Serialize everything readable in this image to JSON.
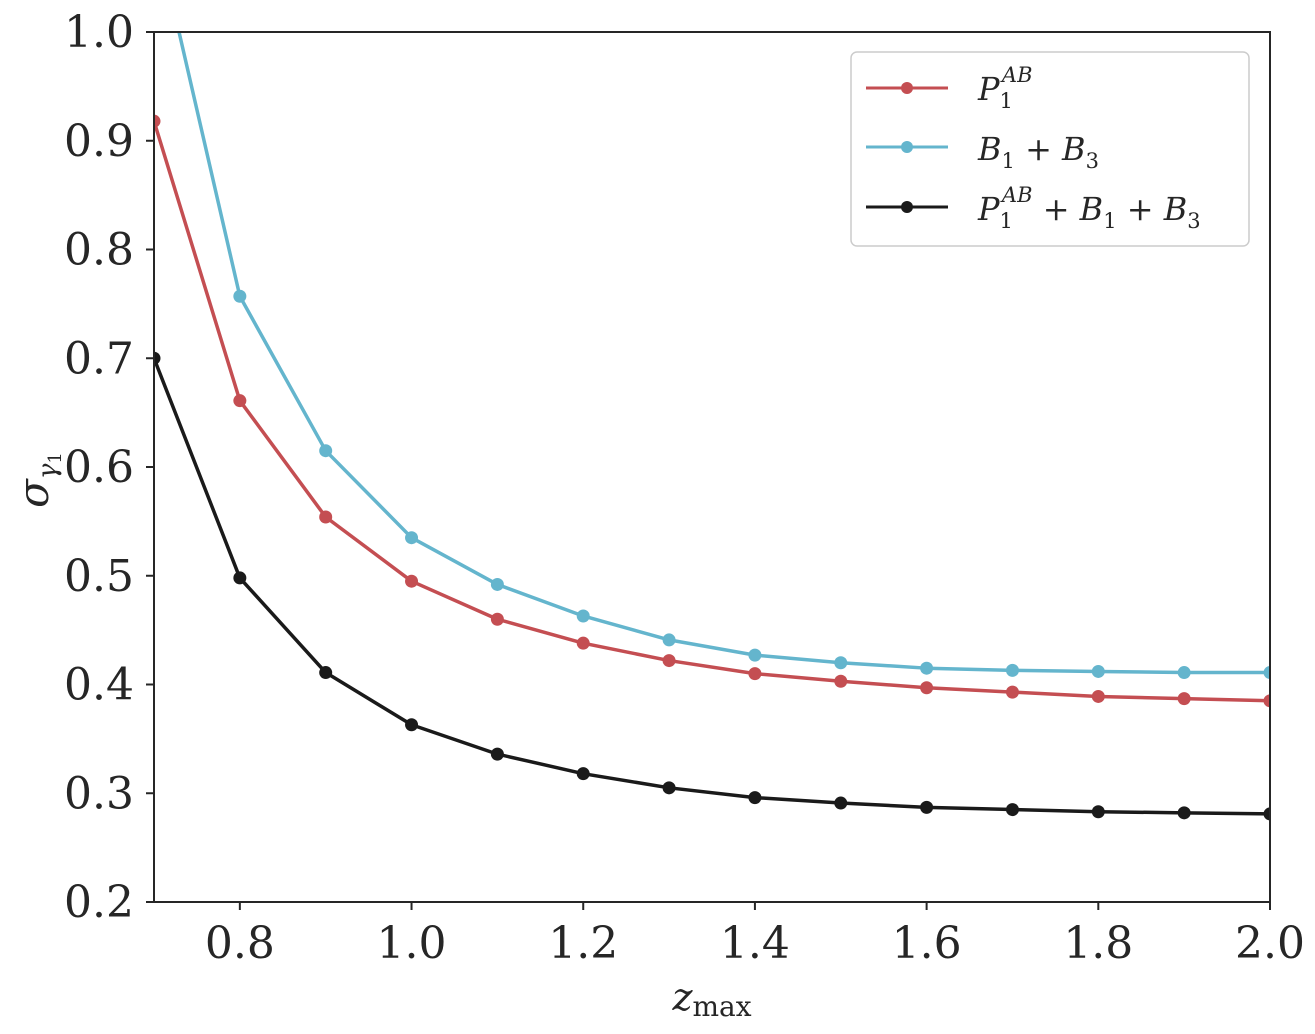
{
  "chart_data": {
    "type": "line",
    "xlabel": "z_max",
    "ylabel": "σ_γ1",
    "xlim": [
      0.7,
      2.0
    ],
    "ylim": [
      0.2,
      1.0
    ],
    "x_ticks": [
      "0.8",
      "1.0",
      "1.2",
      "1.4",
      "1.6",
      "1.8",
      "2.0"
    ],
    "y_ticks": [
      "0.2",
      "0.3",
      "0.4",
      "0.5",
      "0.6",
      "0.7",
      "0.8",
      "0.9",
      "1.0"
    ],
    "grid": false,
    "legend_position": "top-right",
    "x": [
      0.7,
      0.8,
      0.9,
      1.0,
      1.1,
      1.2,
      1.3,
      1.4,
      1.5,
      1.6,
      1.7,
      1.8,
      1.9,
      2.0
    ],
    "series": [
      {
        "name": "P_1^{AB}",
        "color": "#c44e52",
        "values": [
          0.918,
          0.661,
          0.554,
          0.495,
          0.46,
          0.438,
          0.422,
          0.41,
          0.403,
          0.397,
          0.393,
          0.389,
          0.387,
          0.385
        ]
      },
      {
        "name": "B_1 + B_3",
        "color": "#64b5cd",
        "values": [
          1.1,
          0.757,
          0.615,
          0.535,
          0.492,
          0.463,
          0.441,
          0.427,
          0.42,
          0.415,
          0.413,
          0.412,
          0.411,
          0.411
        ]
      },
      {
        "name": "P_1^{AB} + B_1 + B_3",
        "color": "#1a1a1a",
        "values": [
          0.7,
          0.498,
          0.411,
          0.363,
          0.336,
          0.318,
          0.305,
          0.296,
          0.291,
          0.287,
          0.285,
          0.283,
          0.282,
          0.281
        ]
      }
    ]
  }
}
